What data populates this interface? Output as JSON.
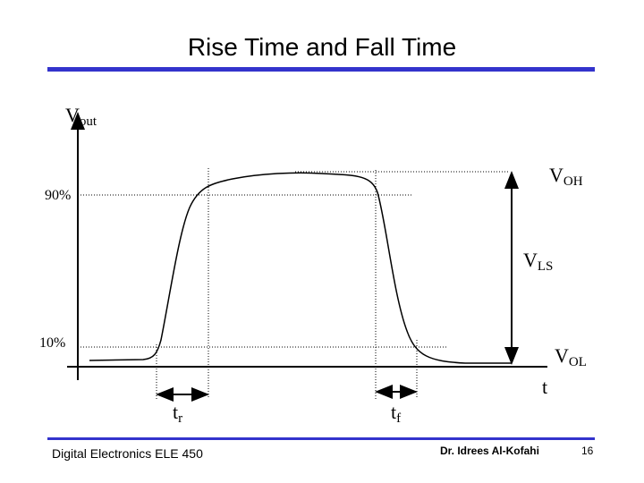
{
  "header": {
    "title": "Rise Time and Fall Time"
  },
  "diagram": {
    "y_axis_label": {
      "main": "V",
      "sub": "out"
    },
    "x_axis_label": "t",
    "level_90": "90%",
    "level_10": "10%",
    "voh": {
      "main": "V",
      "sub": "OH"
    },
    "vls": {
      "main": "V",
      "sub": "LS"
    },
    "vol": {
      "main": "V",
      "sub": "OL"
    },
    "rise_time": {
      "main": "t",
      "sub": "r"
    },
    "fall_time": {
      "main": "t",
      "sub": "f"
    }
  },
  "footer": {
    "course": "Digital Electronics ELE 450",
    "author": "Dr. Idrees Al-Kofahi",
    "page": "16"
  }
}
